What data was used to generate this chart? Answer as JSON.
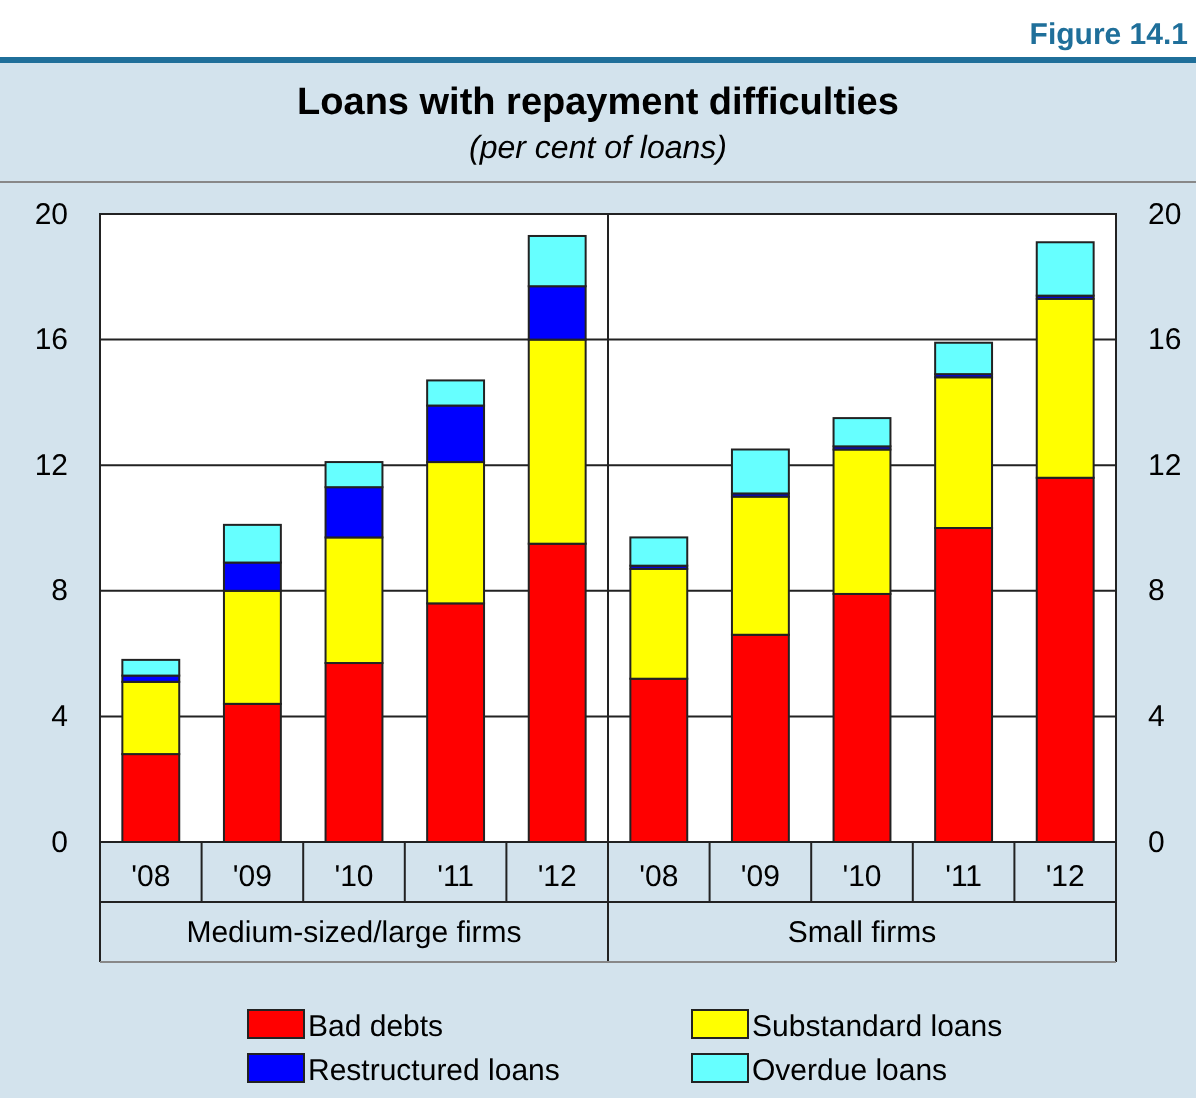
{
  "chart_data": {
    "type": "bar",
    "title": "Loans with repayment difficulties",
    "subtitle": "(per cent of loans)",
    "stacked": true,
    "categories": [
      "'08",
      "'09",
      "'10",
      "'11",
      "'12",
      "'08",
      "'09",
      "'10",
      "'11",
      "'12"
    ],
    "series": [
      {
        "name": "Bad debts",
        "color": "#ff0000",
        "values": [
          2.8,
          4.4,
          5.7,
          7.6,
          9.5,
          5.2,
          6.6,
          7.9,
          10.0,
          11.6
        ]
      },
      {
        "name": "Substandard loans",
        "color": "#ffff00",
        "values": [
          2.3,
          3.6,
          4.0,
          4.5,
          6.5,
          3.5,
          4.4,
          4.6,
          4.8,
          5.7
        ]
      },
      {
        "name": "Restructured loans",
        "color": "#0000ff",
        "values": [
          0.2,
          0.9,
          1.6,
          1.8,
          1.7,
          0.1,
          0.1,
          0.1,
          0.1,
          0.1
        ]
      },
      {
        "name": "Overdue loans",
        "color": "#66ffff",
        "values": [
          0.5,
          1.2,
          0.8,
          0.8,
          1.6,
          0.9,
          1.4,
          0.9,
          1.0,
          1.7
        ]
      }
    ],
    "ylim": [
      0,
      20
    ],
    "yticks": [
      0,
      4,
      8,
      12,
      16,
      20
    ],
    "y2lim": [
      0,
      20
    ],
    "y2ticks": [
      0,
      4,
      8,
      12,
      16,
      20
    ],
    "grid": "y",
    "legend": "bottom",
    "annotations": [
      "Figure 14.1",
      "Medium-sized/large firms",
      "Small firms"
    ]
  }
}
